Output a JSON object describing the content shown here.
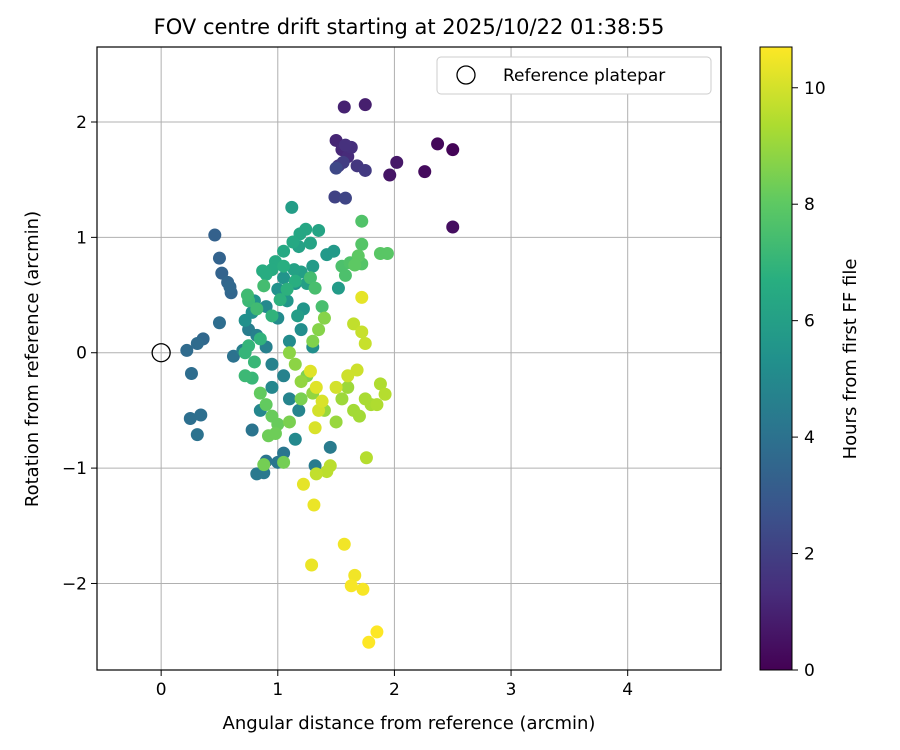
{
  "chart_data": {
    "type": "scatter",
    "title": "FOV centre drift starting at 2025/10/22 01:38:55",
    "xlabel": "Angular distance from reference (arcmin)",
    "ylabel": "Rotation from reference (arcmin)",
    "xlim": [
      -0.55,
      4.8
    ],
    "ylim": [
      -2.75,
      2.65
    ],
    "xticks": [
      0,
      1,
      2,
      3,
      4
    ],
    "yticks": [
      -2,
      -1,
      0,
      1,
      2
    ],
    "grid": true,
    "legend": {
      "position": "top-right",
      "entries": [
        "Reference platepar"
      ]
    },
    "reference_point": {
      "label": "Reference platepar",
      "x": 0,
      "y": 0
    },
    "colorbar": {
      "label": "Hours from first FF file",
      "colormap": "viridis",
      "range": [
        0,
        10.7
      ],
      "ticks": [
        0,
        2,
        4,
        6,
        8,
        10
      ]
    },
    "points": [
      [
        2.5,
        1.76,
        0.1
      ],
      [
        2.37,
        1.81,
        0.2
      ],
      [
        2.26,
        1.57,
        0.3
      ],
      [
        2.5,
        1.09,
        0.4
      ],
      [
        1.96,
        1.54,
        0.6
      ],
      [
        2.02,
        1.65,
        0.7
      ],
      [
        1.75,
        2.15,
        0.9
      ],
      [
        1.57,
        2.13,
        1.0
      ],
      [
        1.5,
        1.84,
        1.1
      ],
      [
        1.55,
        1.76,
        1.2
      ],
      [
        1.6,
        1.7,
        1.3
      ],
      [
        1.63,
        1.78,
        1.4
      ],
      [
        1.58,
        1.8,
        1.5
      ],
      [
        1.52,
        1.62,
        1.6
      ],
      [
        1.68,
        1.62,
        1.7
      ],
      [
        1.75,
        1.58,
        1.8
      ],
      [
        1.56,
        1.65,
        1.9
      ],
      [
        1.49,
        1.35,
        2.1
      ],
      [
        1.58,
        1.34,
        2.2
      ],
      [
        1.5,
        1.6,
        2.3
      ],
      [
        0.46,
        1.02,
        3.3
      ],
      [
        0.5,
        0.82,
        3.4
      ],
      [
        0.52,
        0.69,
        3.4
      ],
      [
        0.57,
        0.61,
        3.5
      ],
      [
        0.6,
        0.52,
        3.5
      ],
      [
        0.59,
        0.57,
        3.6
      ],
      [
        0.36,
        0.12,
        3.6
      ],
      [
        0.31,
        0.08,
        3.7
      ],
      [
        0.22,
        0.02,
        3.7
      ],
      [
        0.5,
        0.26,
        3.8
      ],
      [
        0.26,
        -0.18,
        3.8
      ],
      [
        0.25,
        -0.57,
        3.9
      ],
      [
        0.34,
        -0.54,
        3.9
      ],
      [
        0.31,
        -0.71,
        4.0
      ],
      [
        0.62,
        -0.03,
        4.0
      ],
      [
        0.78,
        -0.67,
        4.1
      ],
      [
        0.9,
        -0.94,
        4.1
      ],
      [
        1.0,
        -0.95,
        4.2
      ],
      [
        1.05,
        -0.87,
        4.2
      ],
      [
        0.82,
        -1.05,
        4.3
      ],
      [
        0.88,
        -1.04,
        4.3
      ],
      [
        1.32,
        -0.98,
        4.4
      ],
      [
        1.45,
        -0.82,
        4.4
      ],
      [
        0.7,
        0.02,
        4.5
      ],
      [
        0.75,
        0.2,
        4.5
      ],
      [
        0.82,
        0.15,
        4.6
      ],
      [
        0.9,
        0.05,
        4.6
      ],
      [
        0.95,
        -0.1,
        4.7
      ],
      [
        1.05,
        -0.2,
        4.7
      ],
      [
        1.1,
        -0.4,
        4.8
      ],
      [
        1.18,
        -0.5,
        4.8
      ],
      [
        0.85,
        -0.5,
        4.9
      ],
      [
        0.95,
        -0.3,
        4.9
      ],
      [
        1.15,
        -0.75,
        5.0
      ],
      [
        0.9,
        0.4,
        5.0
      ],
      [
        1.0,
        0.3,
        5.1
      ],
      [
        1.1,
        0.1,
        5.1
      ],
      [
        1.2,
        0.2,
        5.2
      ],
      [
        1.3,
        0.05,
        5.2
      ],
      [
        0.72,
        0.28,
        5.3
      ],
      [
        0.78,
        0.35,
        5.3
      ],
      [
        0.8,
        0.45,
        5.4
      ],
      [
        1.0,
        0.55,
        5.4
      ],
      [
        1.15,
        0.6,
        5.5
      ],
      [
        1.05,
        0.65,
        5.5
      ],
      [
        1.22,
        0.38,
        5.6
      ],
      [
        1.08,
        0.45,
        5.6
      ],
      [
        1.42,
        0.85,
        5.7
      ],
      [
        1.48,
        0.88,
        5.7
      ],
      [
        1.52,
        0.56,
        5.8
      ],
      [
        1.3,
        0.75,
        5.8
      ],
      [
        1.17,
        0.32,
        5.9
      ],
      [
        1.12,
        1.26,
        5.9
      ],
      [
        1.2,
        0.7,
        6.0
      ],
      [
        1.25,
        0.6,
        6.0
      ],
      [
        1.14,
        0.72,
        6.1
      ],
      [
        1.18,
        0.92,
        6.1
      ],
      [
        1.28,
        0.95,
        6.2
      ],
      [
        1.35,
        1.06,
        6.2
      ],
      [
        1.24,
        1.07,
        6.3
      ],
      [
        1.19,
        1.03,
        6.3
      ],
      [
        1.13,
        0.96,
        6.4
      ],
      [
        1.05,
        0.88,
        6.4
      ],
      [
        0.98,
        0.79,
        6.5
      ],
      [
        0.95,
        0.72,
        6.5
      ],
      [
        0.9,
        0.68,
        6.6
      ],
      [
        0.87,
        0.71,
        6.6
      ],
      [
        1.05,
        0.75,
        6.7
      ],
      [
        1.15,
        0.62,
        6.7
      ],
      [
        1.08,
        0.55,
        6.8
      ],
      [
        1.02,
        0.46,
        6.8
      ],
      [
        0.95,
        0.32,
        6.9
      ],
      [
        0.85,
        0.12,
        6.9
      ],
      [
        0.75,
        0.06,
        7.0
      ],
      [
        0.72,
        0.0,
        7.0
      ],
      [
        0.8,
        -0.08,
        7.1
      ],
      [
        0.78,
        -0.22,
        7.1
      ],
      [
        0.72,
        -0.2,
        7.2
      ],
      [
        0.75,
        0.45,
        7.2
      ],
      [
        0.74,
        0.5,
        7.3
      ],
      [
        0.82,
        0.38,
        7.3
      ],
      [
        0.88,
        0.58,
        7.4
      ],
      [
        1.28,
        0.65,
        7.4
      ],
      [
        1.32,
        0.56,
        7.5
      ],
      [
        1.38,
        0.4,
        7.5
      ],
      [
        1.55,
        0.75,
        7.6
      ],
      [
        1.58,
        0.67,
        7.6
      ],
      [
        1.62,
        0.78,
        7.7
      ],
      [
        1.72,
        1.14,
        7.7
      ],
      [
        1.72,
        0.94,
        7.8
      ],
      [
        1.72,
        0.77,
        7.8
      ],
      [
        1.88,
        0.86,
        7.9
      ],
      [
        1.94,
        0.86,
        7.9
      ],
      [
        1.69,
        0.84,
        8.0
      ],
      [
        1.66,
        0.76,
        8.0
      ],
      [
        0.85,
        -0.35,
        8.1
      ],
      [
        0.9,
        -0.45,
        8.1
      ],
      [
        0.95,
        -0.55,
        8.2
      ],
      [
        1.0,
        -0.62,
        8.2
      ],
      [
        0.92,
        -0.72,
        8.3
      ],
      [
        0.98,
        -0.7,
        8.3
      ],
      [
        1.05,
        -0.95,
        8.4
      ],
      [
        0.88,
        -0.97,
        8.4
      ],
      [
        1.1,
        -0.6,
        8.5
      ],
      [
        1.2,
        -0.4,
        8.5
      ],
      [
        1.25,
        -0.2,
        8.6
      ],
      [
        1.3,
        0.1,
        8.6
      ],
      [
        1.35,
        0.2,
        8.7
      ],
      [
        1.4,
        0.3,
        8.7
      ],
      [
        1.1,
        0.0,
        8.8
      ],
      [
        1.15,
        -0.1,
        8.8
      ],
      [
        1.2,
        -0.25,
        8.9
      ],
      [
        1.3,
        -0.35,
        8.9
      ],
      [
        1.4,
        -0.5,
        9.0
      ],
      [
        1.5,
        -0.6,
        9.0
      ],
      [
        1.55,
        -0.4,
        9.1
      ],
      [
        1.6,
        -0.3,
        9.1
      ],
      [
        1.65,
        -0.5,
        9.2
      ],
      [
        1.7,
        -0.55,
        9.2
      ],
      [
        1.75,
        -0.4,
        9.3
      ],
      [
        1.8,
        -0.45,
        9.3
      ],
      [
        1.85,
        -0.45,
        9.4
      ],
      [
        1.88,
        -0.27,
        9.4
      ],
      [
        1.92,
        -0.36,
        9.5
      ],
      [
        1.76,
        -0.91,
        9.5
      ],
      [
        1.45,
        -0.98,
        9.6
      ],
      [
        1.42,
        -1.03,
        9.6
      ],
      [
        1.33,
        -1.05,
        9.7
      ],
      [
        1.65,
        0.25,
        9.7
      ],
      [
        1.72,
        0.18,
        9.8
      ],
      [
        1.75,
        0.08,
        9.8
      ],
      [
        1.68,
        -0.15,
        9.9
      ],
      [
        1.6,
        -0.2,
        9.9
      ],
      [
        1.5,
        -0.3,
        10.0
      ],
      [
        1.35,
        -0.5,
        10.0
      ],
      [
        1.32,
        -0.65,
        10.1
      ],
      [
        1.38,
        -0.42,
        10.1
      ],
      [
        1.33,
        -0.3,
        10.2
      ],
      [
        1.28,
        -0.16,
        10.2
      ],
      [
        1.72,
        0.48,
        10.3
      ],
      [
        1.22,
        -1.14,
        10.3
      ],
      [
        1.31,
        -1.32,
        10.4
      ],
      [
        1.29,
        -1.84,
        10.4
      ],
      [
        1.57,
        -1.66,
        10.5
      ],
      [
        1.66,
        -1.93,
        10.5
      ],
      [
        1.63,
        -2.02,
        10.6
      ],
      [
        1.73,
        -2.05,
        10.6
      ],
      [
        1.85,
        -2.42,
        10.7
      ],
      [
        1.78,
        -2.51,
        10.7
      ]
    ]
  }
}
